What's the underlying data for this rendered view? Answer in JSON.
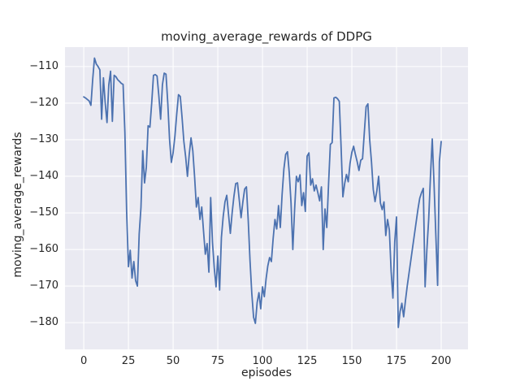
{
  "title": "moving_average_rewards of DDPG",
  "x_axis": {
    "label": "episodes",
    "tick_labels": [
      0,
      25,
      50,
      75,
      100,
      125,
      150,
      175,
      200
    ]
  },
  "y_axis": {
    "label": "moving_average_rewards",
    "tick_labels": [
      -110,
      -120,
      -130,
      -140,
      -150,
      -160,
      -170,
      -180
    ]
  },
  "colors": {
    "line": "#4C72B0",
    "axes_background": "#EAEAF2",
    "grid": "#FFFFFF",
    "text": "#262626",
    "figure_background": "#FFFFFF"
  },
  "chart_data": {
    "type": "line",
    "title": "moving_average_rewards of DDPG",
    "xlabel": "episodes",
    "ylabel": "moving_average_rewards",
    "xlim": [
      -10.5,
      215
    ],
    "ylim": [
      -187.3,
      -104.7
    ],
    "grid": true,
    "legend_position": "none",
    "line_color": "#4C72B0",
    "x": [
      0,
      1,
      2,
      3,
      4,
      5,
      6,
      7,
      8,
      9,
      10,
      11,
      12,
      13,
      14,
      15,
      16,
      17,
      18,
      19,
      20,
      21,
      22,
      23,
      24,
      25,
      26,
      27,
      28,
      29,
      30,
      31,
      32,
      33,
      34,
      35,
      36,
      37,
      38,
      39,
      40,
      41,
      42,
      43,
      44,
      45,
      46,
      47,
      48,
      49,
      50,
      51,
      52,
      53,
      54,
      55,
      56,
      57,
      58,
      59,
      60,
      61,
      62,
      63,
      64,
      65,
      66,
      67,
      68,
      69,
      70,
      71,
      72,
      73,
      74,
      75,
      76,
      77,
      78,
      79,
      80,
      81,
      82,
      83,
      84,
      85,
      86,
      87,
      88,
      89,
      90,
      91,
      92,
      93,
      94,
      95,
      96,
      97,
      98,
      99,
      100,
      101,
      102,
      103,
      104,
      105,
      106,
      107,
      108,
      109,
      110,
      111,
      112,
      113,
      114,
      115,
      116,
      117,
      118,
      119,
      120,
      121,
      122,
      123,
      124,
      125,
      126,
      127,
      128,
      129,
      130,
      131,
      132,
      133,
      134,
      135,
      136,
      137,
      138,
      139,
      140,
      141,
      142,
      143,
      144,
      145,
      146,
      147,
      148,
      149,
      150,
      151,
      152,
      153,
      154,
      155,
      156,
      157,
      158,
      159,
      160,
      161,
      162,
      163,
      164,
      165,
      166,
      167,
      168,
      169,
      170,
      171,
      172,
      173,
      174,
      175,
      176,
      177,
      178,
      179,
      180,
      181,
      182,
      183,
      184,
      185,
      186,
      187,
      188,
      189,
      190,
      191,
      192,
      193,
      194,
      195,
      196,
      197,
      198,
      199,
      200
    ],
    "y": [
      -118.3,
      -118.6,
      -119.0,
      -119.4,
      -120.6,
      -113.5,
      -107.7,
      -109.3,
      -110.0,
      -110.9,
      -124.4,
      -113.1,
      -120.0,
      -125.3,
      -115.0,
      -111.3,
      -125.0,
      -112.4,
      -112.8,
      -113.6,
      -114.1,
      -114.6,
      -114.9,
      -128.0,
      -150.0,
      -164.7,
      -160.2,
      -167.8,
      -163.3,
      -168.5,
      -170.0,
      -155.8,
      -148.5,
      -133.0,
      -141.8,
      -137.5,
      -126.2,
      -126.6,
      -120.0,
      -112.4,
      -112.2,
      -112.6,
      -118.0,
      -124.4,
      -115.0,
      -111.8,
      -112.1,
      -120.0,
      -130.0,
      -136.2,
      -133.5,
      -129.0,
      -123.0,
      -117.7,
      -118.2,
      -124.0,
      -130.5,
      -134.7,
      -140.0,
      -134.0,
      -129.5,
      -133.0,
      -140.1,
      -148.4,
      -145.8,
      -151.8,
      -148.4,
      -155.0,
      -161.3,
      -158.4,
      -166.2,
      -145.8,
      -158.0,
      -165.0,
      -170.2,
      -161.8,
      -171.1,
      -156.7,
      -151.0,
      -147.0,
      -145.2,
      -150.5,
      -155.6,
      -150.0,
      -145.5,
      -142.0,
      -141.8,
      -146.5,
      -151.3,
      -147.0,
      -143.5,
      -142.9,
      -152.0,
      -163.0,
      -172.0,
      -178.5,
      -180.2,
      -174.5,
      -171.8,
      -176.2,
      -170.2,
      -172.9,
      -168.0,
      -164.5,
      -162.2,
      -163.3,
      -157.0,
      -151.8,
      -154.4,
      -148.0,
      -154.0,
      -145.0,
      -138.0,
      -134.0,
      -133.3,
      -139.0,
      -147.3,
      -160.0,
      -149.0,
      -140.0,
      -141.5,
      -139.6,
      -148.0,
      -144.5,
      -149.6,
      -134.5,
      -133.6,
      -142.4,
      -140.7,
      -144.0,
      -142.4,
      -144.5,
      -146.7,
      -142.9,
      -160.0,
      -148.9,
      -154.0,
      -142.0,
      -131.3,
      -130.8,
      -118.6,
      -118.4,
      -118.8,
      -119.5,
      -132.0,
      -145.6,
      -142.0,
      -139.5,
      -141.5,
      -136.5,
      -133.5,
      -131.8,
      -134.0,
      -136.0,
      -138.4,
      -135.6,
      -135.2,
      -128.0,
      -121.0,
      -120.2,
      -130.0,
      -136.0,
      -143.6,
      -146.9,
      -144.0,
      -140.0,
      -147.3,
      -149.1,
      -147.0,
      -156.2,
      -151.8,
      -154.7,
      -166.0,
      -173.3,
      -158.0,
      -151.1,
      -181.3,
      -177.0,
      -174.7,
      -178.4,
      -174.0,
      -170.0,
      -166.5,
      -163.0,
      -159.5,
      -156.0,
      -152.5,
      -149.0,
      -146.0,
      -144.5,
      -143.3,
      -170.2,
      -160.0,
      -151.8,
      -140.0,
      -129.8,
      -142.0,
      -156.0,
      -169.8,
      -136.0,
      -130.5
    ]
  }
}
